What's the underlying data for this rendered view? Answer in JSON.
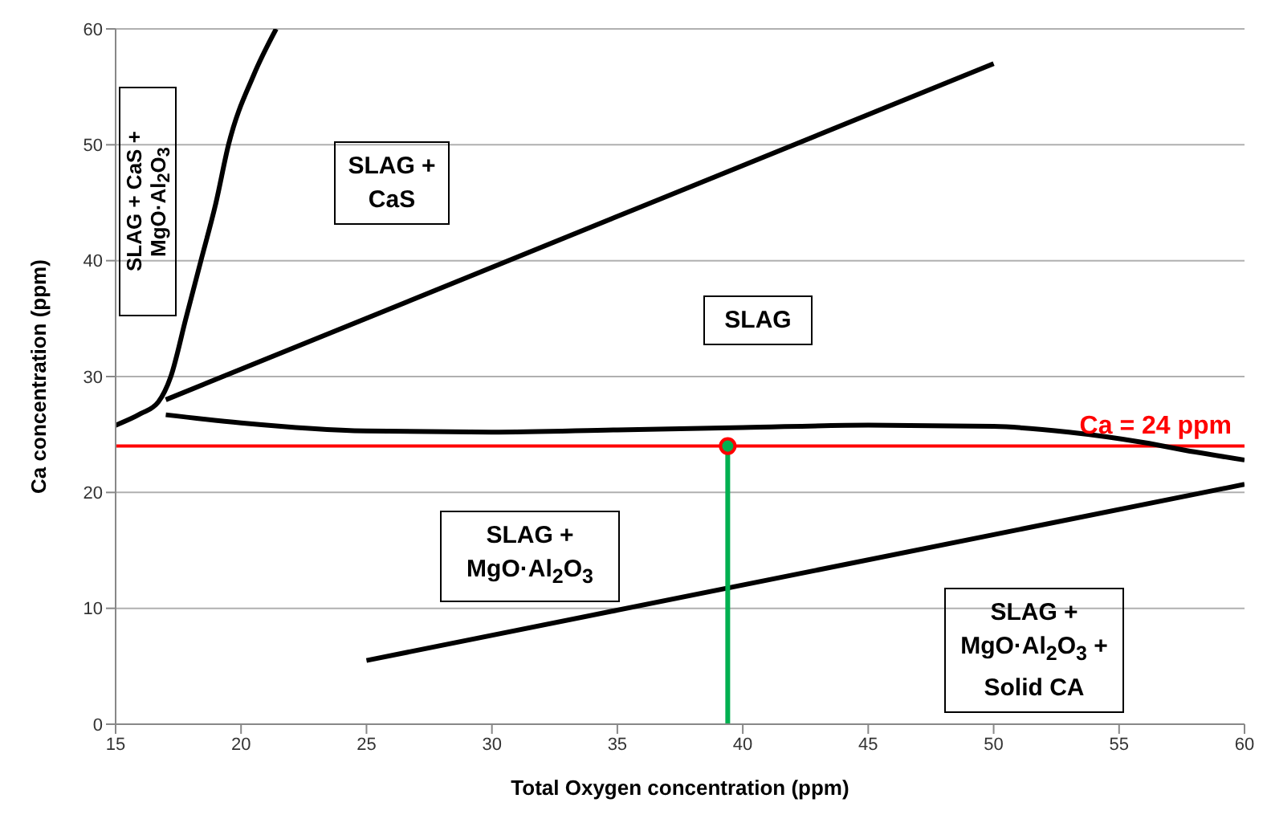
{
  "chart_data": {
    "type": "line",
    "xlabel": "Total Oxygen concentration (ppm)",
    "ylabel": "Ca concentration (ppm)",
    "xlim": [
      15,
      60
    ],
    "xticks": [
      15,
      20,
      25,
      30,
      35,
      40,
      45,
      50,
      55,
      60
    ],
    "ylim": [
      0,
      60
    ],
    "yticks": [
      0,
      10,
      20,
      30,
      40,
      50,
      60
    ],
    "grid": "y",
    "line_style": "solid",
    "series": [
      {
        "color": "#000000",
        "marker": "none",
        "x": [
          15,
          16,
          16.7,
          17.2,
          17.8,
          18.4,
          19,
          19.5,
          20.5,
          21.4
        ],
        "values": [
          25.8,
          26.8,
          27.8,
          30,
          35,
          40,
          45,
          50,
          56,
          60
        ]
      },
      {
        "color": "#000000",
        "marker": "none",
        "x": [
          17,
          50
        ],
        "values": [
          28,
          57
        ]
      },
      {
        "color": "#000000",
        "marker": "none",
        "x": [
          17,
          20,
          25,
          30,
          35,
          40,
          45,
          50,
          53,
          56,
          58,
          60
        ],
        "values": [
          26.7,
          26,
          25.3,
          25.2,
          25.4,
          25.6,
          25.8,
          25.7,
          25.2,
          24.3,
          23.5,
          22.8
        ]
      },
      {
        "color": "#000000",
        "marker": "none",
        "x": [
          25,
          60
        ],
        "values": [
          5.5,
          20.7
        ]
      },
      {
        "color": "#00b050",
        "marker": "none",
        "x": [
          39.4,
          39.4
        ],
        "values": [
          0,
          24
        ]
      },
      {
        "type": "scatter",
        "color": "#00b050",
        "marker": "circle",
        "x": [
          39.4
        ],
        "values": [
          24
        ]
      }
    ],
    "ref_lines": [
      {
        "axis": "y",
        "value": 24,
        "label": "Ca = 24 ppm",
        "color": "#ff0000"
      }
    ],
    "annotations": [
      "SLAG + CaS + MgO·Al$_{2}$O$_{3}$",
      "SLAG + CaS",
      "SLAG",
      "SLAG + MgO·Al$_{2}$O$_{3}$",
      "SLAG + MgO·Al$_{2}$O$_{3}$ + Solid CA"
    ]
  }
}
